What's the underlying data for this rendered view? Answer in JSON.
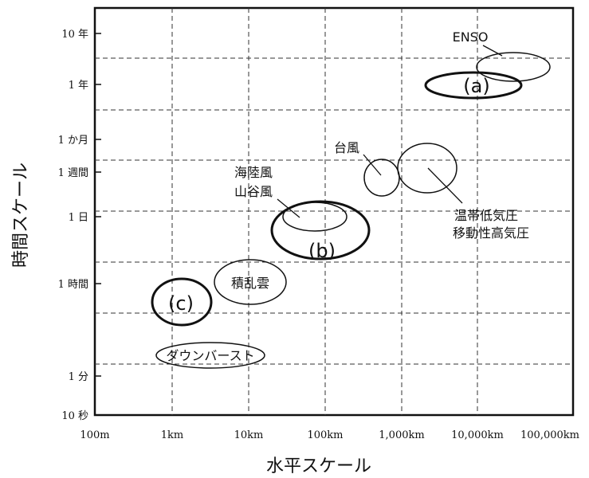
{
  "chart_data": {
    "type": "scatter",
    "xlabel": "水平スケール",
    "ylabel": "時間スケール",
    "x_ticks": [
      "100m",
      "1km",
      "10km",
      "100km",
      "1,000km",
      "10,000km",
      "100,000km"
    ],
    "y_ticks": [
      "10 秒",
      "1 分",
      "1 時間",
      "1 日",
      "1 週間",
      "1 か月",
      "1 年",
      "10 年"
    ],
    "grid": true,
    "phenomena": [
      {
        "name": "ENSO",
        "x_range": [
          "10,000km",
          "100,000km"
        ],
        "time": "年〜10 年"
      },
      {
        "name": "(a)",
        "x_range": [
          "1,000km",
          "10,000km"
        ],
        "time": "1 年"
      },
      {
        "name": "台風",
        "x_range": [
          "1,000km",
          "1,000km"
        ],
        "time": "1 週間前後"
      },
      {
        "name": "温帯低気圧 移動性高気圧",
        "x_range": [
          "1,000km",
          "10,000km"
        ],
        "time": "1 週間前後"
      },
      {
        "name": "海陸風 山谷風",
        "x_range": [
          "100km",
          "100km"
        ],
        "time": "1 日"
      },
      {
        "name": "(b)",
        "x_range": [
          "10km",
          "100km"
        ],
        "time": "1 日前後"
      },
      {
        "name": "積乱雲",
        "x_range": [
          "1km",
          "10km"
        ],
        "time": "1 時間"
      },
      {
        "name": "(c)",
        "x_range": [
          "1km",
          "1km"
        ],
        "time": "1 時間未満"
      },
      {
        "name": "ダウンバースト",
        "x_range": [
          "1km",
          "10km"
        ],
        "time": "数分"
      }
    ]
  },
  "labels": {
    "enso": "ENSO",
    "a": "(a)",
    "typhoon": "台風",
    "ext1": "温帯低気圧",
    "ext2": "移動性高気圧",
    "sea1": "海陸風",
    "sea2": "山谷風",
    "b": "(b)",
    "cb": "積乱雲",
    "c": "(c)",
    "downburst": "ダウンバースト"
  }
}
